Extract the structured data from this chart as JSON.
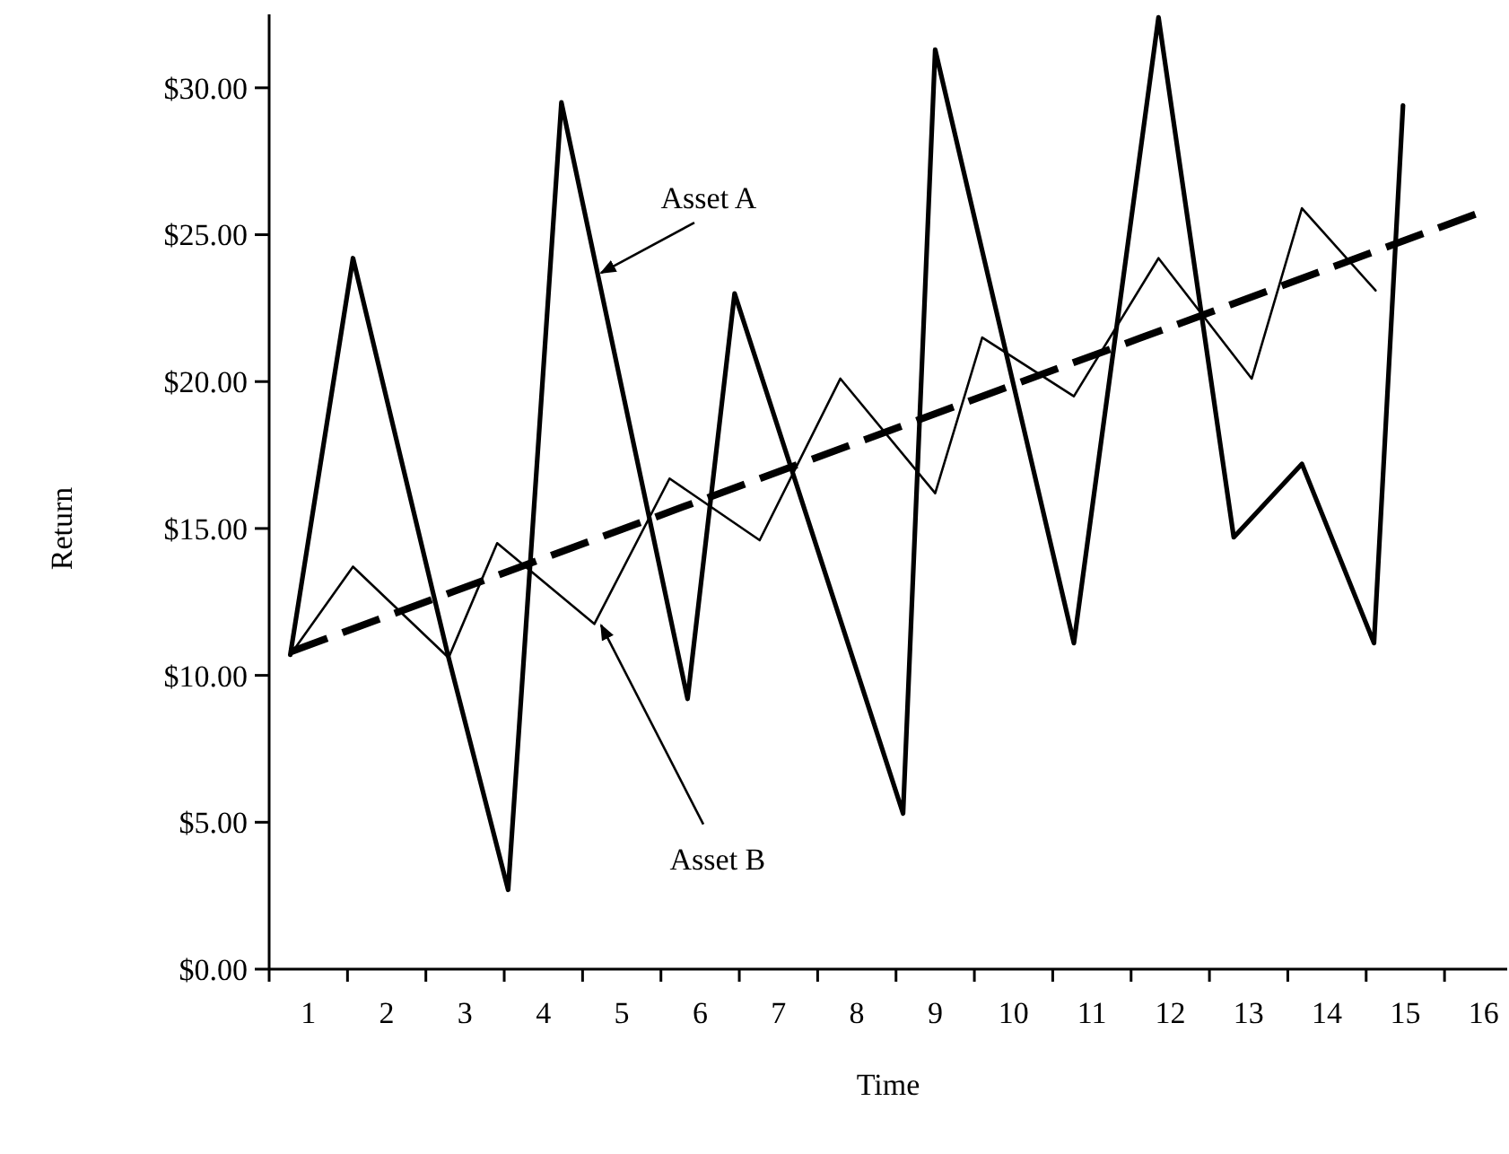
{
  "chart_data": {
    "type": "line",
    "xlabel": "Time",
    "ylabel": "Return",
    "xlim": [
      0.5,
      16.3
    ],
    "ylim": [
      0,
      32.5
    ],
    "xticks": [
      {
        "value": 1,
        "label": "1"
      },
      {
        "value": 2,
        "label": "2"
      },
      {
        "value": 3,
        "label": "3"
      },
      {
        "value": 4,
        "label": "4"
      },
      {
        "value": 5,
        "label": "5"
      },
      {
        "value": 6,
        "label": "6"
      },
      {
        "value": 7,
        "label": "7"
      },
      {
        "value": 8,
        "label": "8"
      },
      {
        "value": 9,
        "label": "9"
      },
      {
        "value": 10,
        "label": "10"
      },
      {
        "value": 11,
        "label": "11"
      },
      {
        "value": 12,
        "label": "12"
      },
      {
        "value": 13,
        "label": "13"
      },
      {
        "value": 14,
        "label": "14"
      },
      {
        "value": 15,
        "label": "15"
      },
      {
        "value": 16,
        "label": "16"
      },
      {
        "value": 0.5,
        "label": null
      },
      {
        "value": 1.5,
        "label": null
      },
      {
        "value": 2.5,
        "label": null
      },
      {
        "value": 3.5,
        "label": null
      },
      {
        "value": 4.5,
        "label": null
      },
      {
        "value": 5.5,
        "label": null
      },
      {
        "value": 6.5,
        "label": null
      },
      {
        "value": 7.5,
        "label": null
      },
      {
        "value": 8.5,
        "label": null
      },
      {
        "value": 9.5,
        "label": null
      },
      {
        "value": 10.5,
        "label": null
      },
      {
        "value": 11.5,
        "label": null
      },
      {
        "value": 12.5,
        "label": null
      },
      {
        "value": 13.5,
        "label": null
      },
      {
        "value": 14.5,
        "label": null
      },
      {
        "value": 15.5,
        "label": null
      }
    ],
    "yticks": [
      {
        "value": 0,
        "label": "$0.00"
      },
      {
        "value": 5,
        "label": "$5.00"
      },
      {
        "value": 10,
        "label": "$10.00"
      },
      {
        "value": 15,
        "label": "$15.00"
      },
      {
        "value": 20,
        "label": "$20.00"
      },
      {
        "value": 25,
        "label": "$25.00"
      },
      {
        "value": 30,
        "label": "$30.00"
      }
    ],
    "grid": false,
    "legend": false,
    "marker": "none",
    "series": [
      {
        "name": "Asset A",
        "color": "#000000",
        "line_style": "solid",
        "x": [
          0.77,
          1.57,
          2.79,
          3.55,
          4.23,
          5.84,
          6.44,
          8.59,
          9.0,
          10.77,
          11.85,
          12.81,
          13.68,
          14.6,
          14.97
        ],
        "values": [
          10.7,
          24.2,
          10.6,
          2.7,
          29.5,
          9.2,
          23.0,
          5.3,
          31.3,
          11.1,
          32.4,
          14.7,
          17.2,
          11.1,
          29.4
        ]
      },
      {
        "name": "Asset B",
        "color": "#000000",
        "line_style": "solid",
        "x": [
          0.77,
          1.57,
          2.79,
          3.41,
          4.65,
          5.61,
          6.76,
          7.79,
          9.0,
          9.6,
          10.77,
          11.85,
          13.04,
          13.68,
          14.62
        ],
        "values": [
          10.7,
          13.7,
          10.6,
          14.5,
          11.75,
          16.7,
          14.6,
          20.1,
          16.2,
          21.5,
          19.5,
          24.2,
          20.1,
          25.9,
          23.1
        ]
      },
      {
        "color": "#000000",
        "line_style": "dashed",
        "x": [
          0.77,
          15.9
        ],
        "values": [
          10.8,
          25.7
        ]
      }
    ]
  }
}
